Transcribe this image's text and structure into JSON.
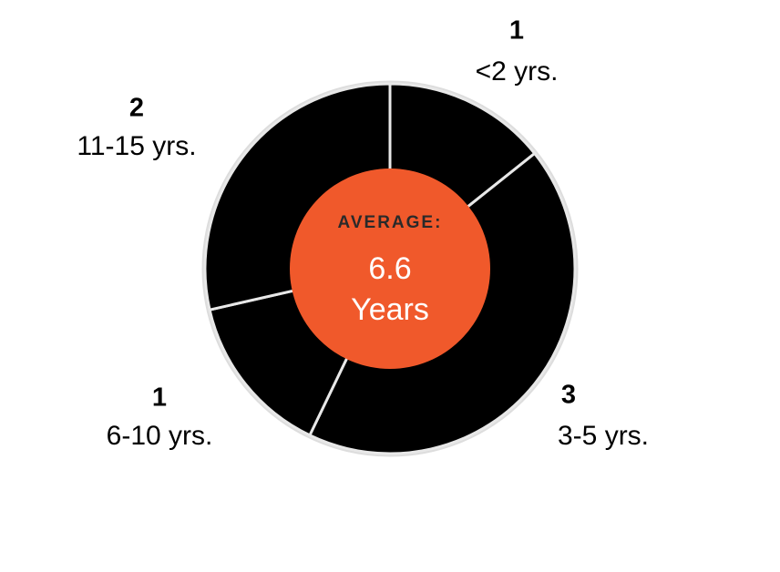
{
  "chart_data": {
    "type": "donut",
    "categories": [
      "<2 yrs.",
      "3-5 yrs.",
      "6-10 yrs.",
      "11-15 yrs."
    ],
    "values": [
      1,
      3,
      1,
      2
    ],
    "color": "#000000",
    "center": {
      "label": "AVERAGE:",
      "value": "6.6",
      "unit": "Years",
      "color": "#f0592b"
    }
  }
}
